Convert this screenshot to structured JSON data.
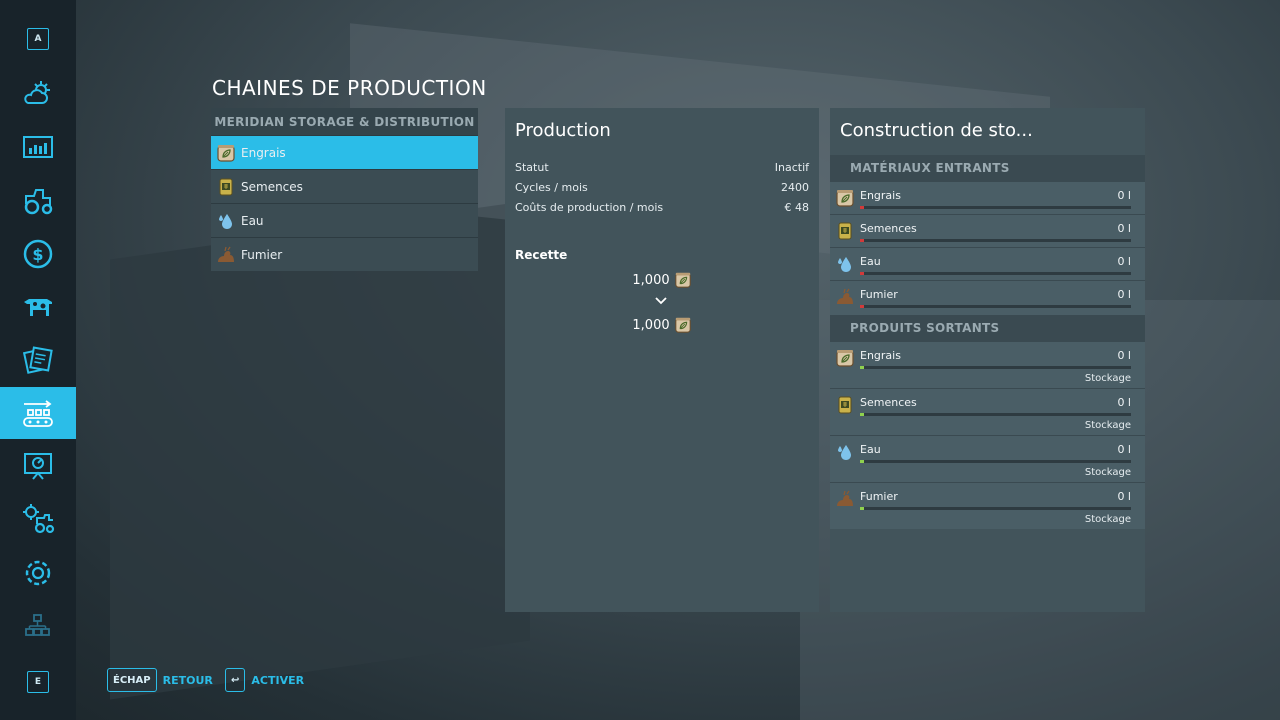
{
  "page_title": "CHAINES DE PRODUCTION",
  "sidebar": {
    "top_key": "A",
    "bottom_key": "E",
    "items": [
      {
        "name": "weather-icon"
      },
      {
        "name": "stats-icon"
      },
      {
        "name": "tractor-icon"
      },
      {
        "name": "money-icon"
      },
      {
        "name": "cow-icon"
      },
      {
        "name": "contracts-icon"
      },
      {
        "name": "production-icon",
        "active": true
      },
      {
        "name": "tutorial-icon"
      },
      {
        "name": "vehicle-settings-icon"
      },
      {
        "name": "settings-icon"
      },
      {
        "name": "network-icon"
      }
    ]
  },
  "production_list": {
    "header": "MERIDIAN STORAGE & DISTRIBUTION",
    "items": [
      {
        "label": "Engrais",
        "icon": "fertilizer-icon",
        "selected": true
      },
      {
        "label": "Semences",
        "icon": "seeds-icon"
      },
      {
        "label": "Eau",
        "icon": "water-icon"
      },
      {
        "label": "Fumier",
        "icon": "manure-icon"
      }
    ]
  },
  "production_panel": {
    "title": "Production",
    "rows": [
      {
        "label": "Statut",
        "value": "Inactif"
      },
      {
        "label": "Cycles / mois",
        "value": "2400"
      },
      {
        "label": "Coûts de production / mois",
        "value": "€ 48"
      }
    ],
    "recipe_label": "Recette",
    "recipe_input": "1,000",
    "recipe_output": "1,000"
  },
  "storage_panel": {
    "title": "Construction de sto...",
    "inputs_header": "MATÉRIAUX ENTRANTS",
    "inputs": [
      {
        "name": "Engrais",
        "qty": "0 l",
        "icon": "fertilizer-icon"
      },
      {
        "name": "Semences",
        "qty": "0 l",
        "icon": "seeds-icon"
      },
      {
        "name": "Eau",
        "qty": "0 l",
        "icon": "water-icon"
      },
      {
        "name": "Fumier",
        "qty": "0 l",
        "icon": "manure-icon"
      }
    ],
    "outputs_header": "PRODUITS SORTANTS",
    "outputs": [
      {
        "name": "Engrais",
        "qty": "0 l",
        "mode": "Stockage",
        "icon": "fertilizer-icon"
      },
      {
        "name": "Semences",
        "qty": "0 l",
        "mode": "Stockage",
        "icon": "seeds-icon"
      },
      {
        "name": "Eau",
        "qty": "0 l",
        "mode": "Stockage",
        "icon": "water-icon"
      },
      {
        "name": "Fumier",
        "qty": "0 l",
        "mode": "Stockage",
        "icon": "manure-icon"
      }
    ]
  },
  "footer": {
    "back_key": "ÉCHAP",
    "back_label": "RETOUR",
    "activate_key": "↩",
    "activate_label": "ACTIVER"
  },
  "colors": {
    "accent": "#2bbde8",
    "input_bar_mark": "#d23a3a",
    "output_bar_mark": "#8fd14f"
  }
}
